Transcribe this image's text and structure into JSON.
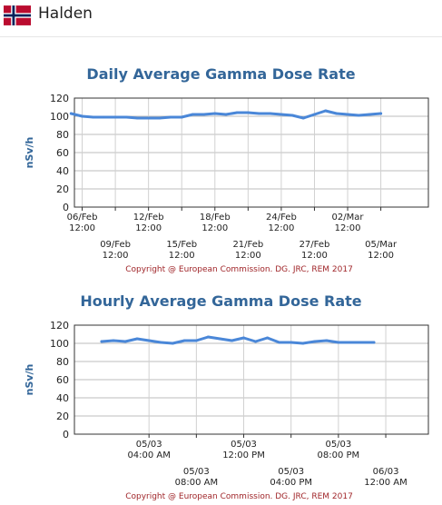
{
  "header": {
    "place": "Halden",
    "flag_icon": "norway-flag-icon"
  },
  "colors": {
    "title": "#336699",
    "series": "#4a87d8",
    "axis": "#333333",
    "copyright": "#a0262a"
  },
  "chart_data": [
    {
      "type": "line",
      "title": "Daily Average Gamma Dose Rate",
      "ylabel": "nSv/h",
      "ylim": [
        0,
        120
      ],
      "yticks": [
        0,
        20,
        40,
        60,
        80,
        100,
        120
      ],
      "xlim": [
        0.3,
        32.3
      ],
      "xticks": [
        {
          "x": 1,
          "line1": "06/Feb",
          "line2": "12:00",
          "row": 0
        },
        {
          "x": 4,
          "line1": "09/Feb",
          "line2": "12:00",
          "row": 1
        },
        {
          "x": 7,
          "line1": "12/Feb",
          "line2": "12:00",
          "row": 0
        },
        {
          "x": 10,
          "line1": "15/Feb",
          "line2": "12:00",
          "row": 1
        },
        {
          "x": 13,
          "line1": "18/Feb",
          "line2": "12:00",
          "row": 0
        },
        {
          "x": 16,
          "line1": "21/Feb",
          "line2": "12:00",
          "row": 1
        },
        {
          "x": 19,
          "line1": "24/Feb",
          "line2": "12:00",
          "row": 0
        },
        {
          "x": 22,
          "line1": "27/Feb",
          "line2": "12:00",
          "row": 1
        },
        {
          "x": 25,
          "line1": "02/Mar",
          "line2": "12:00",
          "row": 0
        },
        {
          "x": 28,
          "line1": "05/Mar",
          "line2": "12:00",
          "row": 1
        }
      ],
      "series": [
        {
          "x": [
            0,
            1,
            2,
            3,
            4,
            5,
            6,
            7,
            8,
            9,
            10,
            11,
            12,
            13,
            14,
            15,
            16,
            17,
            18,
            19,
            20,
            21,
            22,
            23,
            24,
            25,
            26,
            27,
            28
          ],
          "values": [
            103,
            100,
            99,
            99,
            99,
            99,
            98,
            98,
            98,
            99,
            99,
            102,
            102,
            103,
            102,
            104,
            104,
            103,
            103,
            102,
            101,
            98,
            102,
            106,
            103,
            102,
            101,
            102,
            103
          ]
        }
      ],
      "copyright": "Copyright @ European Commission. DG. JRC, REM 2017"
    },
    {
      "type": "line",
      "title": "Hourly Average Gamma Dose Rate",
      "ylabel": "nSv/h",
      "ylim": [
        0,
        120
      ],
      "yticks": [
        0,
        20,
        40,
        60,
        80,
        100,
        120
      ],
      "xlim": [
        -2.3,
        27.6
      ],
      "xticks": [
        {
          "x": 4,
          "line1": "05/03",
          "line2": "04:00 AM",
          "row": 0
        },
        {
          "x": 8,
          "line1": "05/03",
          "line2": "08:00 AM",
          "row": 1
        },
        {
          "x": 12,
          "line1": "05/03",
          "line2": "12:00 PM",
          "row": 0
        },
        {
          "x": 16,
          "line1": "05/03",
          "line2": "04:00 PM",
          "row": 1
        },
        {
          "x": 20,
          "line1": "05/03",
          "line2": "08:00 PM",
          "row": 0
        },
        {
          "x": 24,
          "line1": "06/03",
          "line2": "12:00 AM",
          "row": 1
        }
      ],
      "series": [
        {
          "x": [
            0,
            1,
            2,
            3,
            4,
            5,
            6,
            7,
            8,
            9,
            10,
            11,
            12,
            13,
            14,
            15,
            16,
            17,
            18,
            19,
            20,
            21,
            22,
            23
          ],
          "values": [
            102,
            103,
            102,
            105,
            103,
            101,
            100,
            103,
            103,
            107,
            105,
            103,
            106,
            102,
            106,
            101,
            101,
            100,
            102,
            103,
            101,
            101,
            101,
            101
          ]
        }
      ],
      "copyright": "Copyright @ European Commission. DG. JRC, REM 2017"
    }
  ]
}
